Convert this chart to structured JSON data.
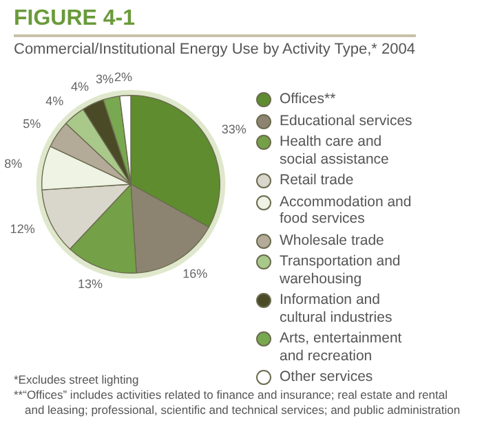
{
  "chart_data": {
    "type": "pie",
    "title": "FIGURE 4-1",
    "subtitle": "Commercial/Institutional Energy Use by Activity Type,* 2004",
    "categories": [
      "Offices**",
      "Educational services",
      "Health care and social assistance",
      "Retail trade",
      "Accommodation and food services",
      "Wholesale trade",
      "Transportation and warehousing",
      "Information and cultural industries",
      "Arts, entertainment and recreation",
      "Other services"
    ],
    "values": [
      33,
      16,
      13,
      12,
      8,
      5,
      4,
      4,
      3,
      2
    ],
    "value_labels": [
      "33%",
      "16%",
      "13%",
      "12%",
      "8%",
      "5%",
      "4%",
      "4%",
      "3%",
      "2%"
    ],
    "colors": [
      "#5e8c2e",
      "#8c8470",
      "#74a047",
      "#d9d6cb",
      "#eef3e4",
      "#b3aa98",
      "#a9c98a",
      "#4a4a26",
      "#78a850",
      "#ffffff"
    ],
    "legend": "right",
    "annotations": [
      "*Excludes street lighting",
      "**“Offices” includes activities related to finance and insurance; real estate and rental and leasing; professional, scientific and technical services; and public administration"
    ]
  }
}
